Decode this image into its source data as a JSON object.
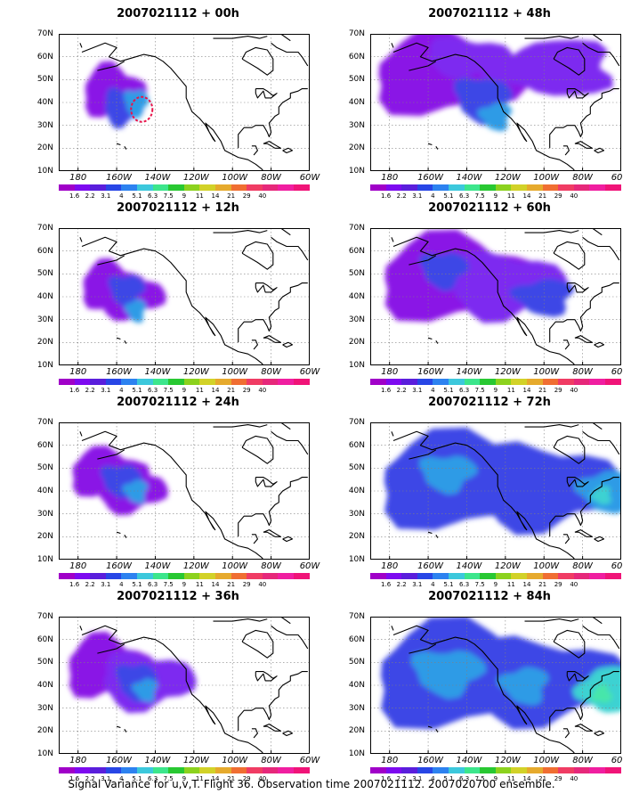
{
  "panels": [
    {
      "title": "2007021112 + 00h"
    },
    {
      "title": "2007021112 + 48h"
    },
    {
      "title": "2007021112 + 12h"
    },
    {
      "title": "2007021112 + 60h"
    },
    {
      "title": "2007021112 + 24h"
    },
    {
      "title": "2007021112 + 72h"
    },
    {
      "title": "2007021112 + 36h"
    },
    {
      "title": "2007021112 + 84h"
    }
  ],
  "map": {
    "lat_labels": [
      "70N",
      "60N",
      "50N",
      "40N",
      "30N",
      "20N",
      "10N"
    ],
    "lon_labels": [
      "180",
      "160W",
      "140W",
      "120W",
      "100W",
      "80W",
      "60W"
    ]
  },
  "colorbar": {
    "labels": [
      "1.6",
      "2.2",
      "3.1",
      "4",
      "5.1",
      "6.3",
      "7.5",
      "9",
      "11",
      "14",
      "21",
      "29",
      "40"
    ],
    "colors": [
      "#a000c8",
      "#7d0af0",
      "#5a1edc",
      "#2846e6",
      "#2d82f0",
      "#3cc8dc",
      "#3ce68c",
      "#28c832",
      "#8cd21e",
      "#d2d228",
      "#e6aa2d",
      "#f06e32",
      "#f03c64",
      "#e6287a",
      "#f01ea0",
      "#f01478"
    ]
  },
  "caption": "Signal Variance for u,v,T. Flight 36. Observation time 2007021112. 2007020700 ensemble."
}
